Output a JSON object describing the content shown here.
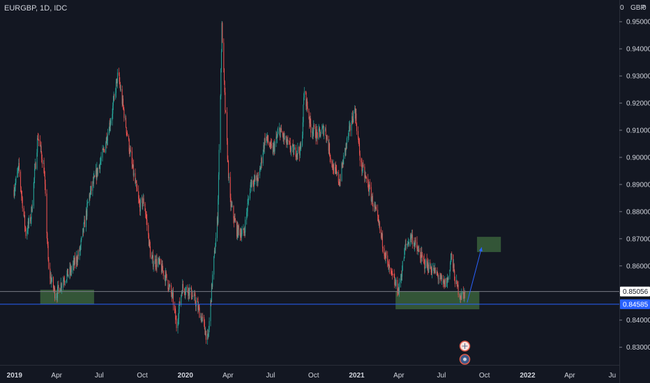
{
  "header": {
    "symbol": "EURGBP, 1D, IDC",
    "currency": "GBP",
    "zero_left": "0",
    "zero_right": "0"
  },
  "chart_data": {
    "type": "candlestick",
    "symbol": "EURGBP",
    "interval": "1D",
    "source": "IDC",
    "currency": "GBP",
    "ylim": [
      0.8235,
      0.958
    ],
    "y_ticks": [
      "0.95000",
      "0.94000",
      "0.93000",
      "0.92000",
      "0.91000",
      "0.90000",
      "0.89000",
      "0.88000",
      "0.87000",
      "0.86000",
      "0.85000",
      "0.84000",
      "0.83000"
    ],
    "x_ticks": [
      "2019",
      "Apr",
      "Jul",
      "Oct",
      "2020",
      "Apr",
      "Jul",
      "Oct",
      "2021",
      "Apr",
      "Jul",
      "Oct",
      "2022",
      "Apr",
      "Ju"
    ],
    "price_path": [
      [
        "2018-12-31",
        0.888
      ],
      [
        "2019-01-10",
        0.896
      ],
      [
        "2019-01-25",
        0.872
      ],
      [
        "2019-02-05",
        0.878
      ],
      [
        "2019-02-20",
        0.908
      ],
      [
        "2019-03-05",
        0.896
      ],
      [
        "2019-03-15",
        0.858
      ],
      [
        "2019-03-30",
        0.849
      ],
      [
        "2019-04-15",
        0.855
      ],
      [
        "2019-05-01",
        0.858
      ],
      [
        "2019-05-20",
        0.865
      ],
      [
        "2019-06-10",
        0.886
      ],
      [
        "2019-06-25",
        0.894
      ],
      [
        "2019-07-10",
        0.902
      ],
      [
        "2019-07-28",
        0.916
      ],
      [
        "2019-08-10",
        0.931
      ],
      [
        "2019-08-25",
        0.914
      ],
      [
        "2019-09-10",
        0.896
      ],
      [
        "2019-09-25",
        0.882
      ],
      [
        "2019-10-05",
        0.884
      ],
      [
        "2019-10-20",
        0.862
      ],
      [
        "2019-11-05",
        0.861
      ],
      [
        "2019-11-20",
        0.856
      ],
      [
        "2019-12-05",
        0.848
      ],
      [
        "2019-12-13",
        0.838
      ],
      [
        "2019-12-25",
        0.852
      ],
      [
        "2020-01-10",
        0.851
      ],
      [
        "2020-01-25",
        0.846
      ],
      [
        "2020-02-10",
        0.838
      ],
      [
        "2020-02-18",
        0.832
      ],
      [
        "2020-02-28",
        0.856
      ],
      [
        "2020-03-10",
        0.878
      ],
      [
        "2020-03-19",
        0.948
      ],
      [
        "2020-03-26",
        0.918
      ],
      [
        "2020-04-05",
        0.884
      ],
      [
        "2020-04-20",
        0.873
      ],
      [
        "2020-05-05",
        0.872
      ],
      [
        "2020-05-20",
        0.891
      ],
      [
        "2020-06-05",
        0.892
      ],
      [
        "2020-06-20",
        0.908
      ],
      [
        "2020-07-05",
        0.902
      ],
      [
        "2020-07-20",
        0.91
      ],
      [
        "2020-08-05",
        0.905
      ],
      [
        "2020-08-20",
        0.902
      ],
      [
        "2020-09-05",
        0.903
      ],
      [
        "2020-09-11",
        0.925
      ],
      [
        "2020-09-25",
        0.911
      ],
      [
        "2020-10-10",
        0.908
      ],
      [
        "2020-10-25",
        0.911
      ],
      [
        "2020-11-10",
        0.897
      ],
      [
        "2020-11-25",
        0.891
      ],
      [
        "2020-12-10",
        0.905
      ],
      [
        "2020-12-28",
        0.918
      ],
      [
        "2021-01-10",
        0.897
      ],
      [
        "2021-01-25",
        0.89
      ],
      [
        "2021-02-10",
        0.88
      ],
      [
        "2021-02-25",
        0.869
      ],
      [
        "2021-03-10",
        0.859
      ],
      [
        "2021-03-25",
        0.853
      ],
      [
        "2021-04-01",
        0.851
      ],
      [
        "2021-04-15",
        0.867
      ],
      [
        "2021-04-28",
        0.871
      ],
      [
        "2021-05-10",
        0.866
      ],
      [
        "2021-05-25",
        0.861
      ],
      [
        "2021-06-10",
        0.859
      ],
      [
        "2021-06-25",
        0.856
      ],
      [
        "2021-07-05",
        0.853
      ],
      [
        "2021-07-15",
        0.855
      ],
      [
        "2021-07-22",
        0.864
      ],
      [
        "2021-08-01",
        0.853
      ],
      [
        "2021-08-12",
        0.849
      ],
      [
        "2021-08-20",
        0.85
      ]
    ],
    "horizontal_lines": [
      {
        "price": 0.85056,
        "label": "0.85056",
        "color": "#787b86"
      },
      {
        "price": 0.84585,
        "label": "0.84585",
        "color": "#2962ff"
      }
    ],
    "zones": [
      {
        "from": "2019-02-25",
        "to": "2019-06-20",
        "y1": 0.8512,
        "y2": 0.846,
        "color": "#3f6b3f"
      },
      {
        "from": "2021-03-25",
        "to": "2021-09-20",
        "y1": 0.8507,
        "y2": 0.844,
        "color": "#3f6b3f"
      },
      {
        "from": "2021-09-15",
        "to": "2021-11-05",
        "y1": 0.8707,
        "y2": 0.8651,
        "color": "#3f6b3f"
      }
    ],
    "arrow": {
      "from": [
        "2021-08-25",
        0.8465
      ],
      "to": [
        "2021-09-25",
        0.8668
      ],
      "color": "#2962ff"
    },
    "colors": {
      "background": "#131722",
      "up": "#26a69a",
      "down": "#ef5350",
      "text": "#d1d4dc",
      "axis_line": "#2a2e39"
    }
  }
}
